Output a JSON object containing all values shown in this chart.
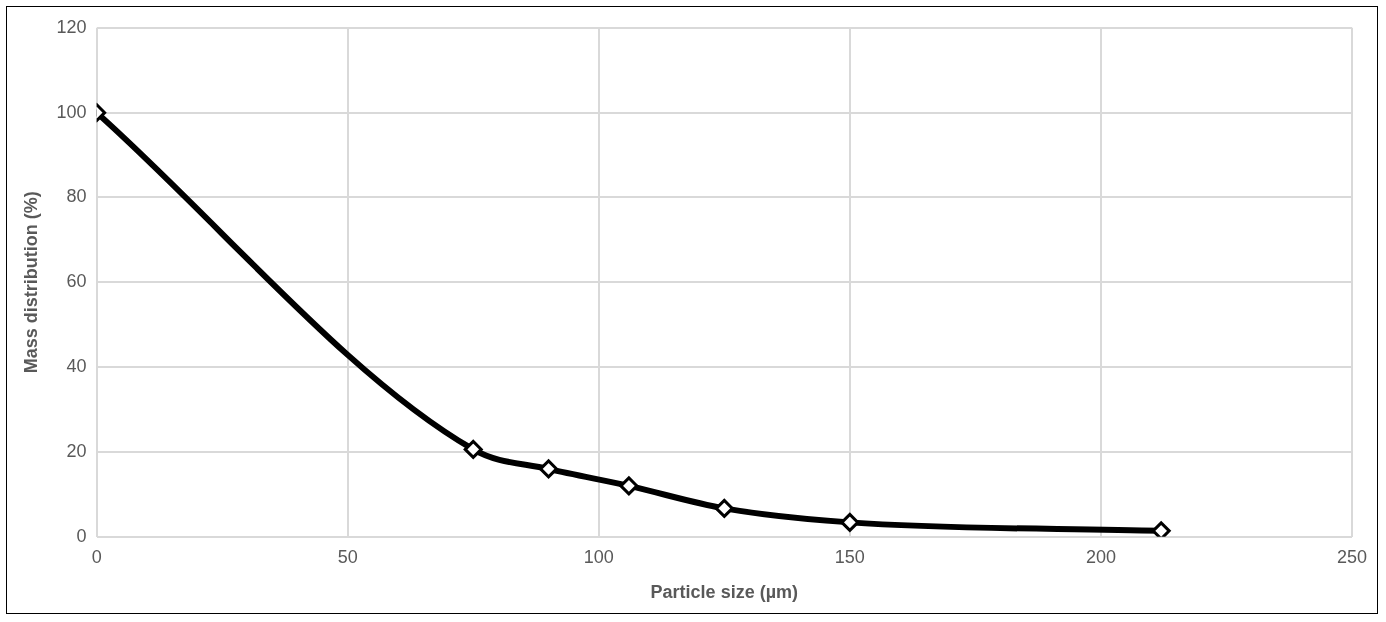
{
  "chart_data": {
    "type": "line",
    "xlabel": "Particle size (µm)",
    "ylabel": "Mass distribution (%)",
    "x": [
      0,
      75,
      90,
      106,
      125,
      150,
      212
    ],
    "series": [
      {
        "color": "#000000",
        "values": [
          100,
          20.6,
          16,
          12,
          6.7,
          3.4,
          1.4
        ]
      }
    ],
    "xlim": [
      0,
      250
    ],
    "xticks": [
      0,
      50,
      100,
      150,
      200,
      250
    ],
    "ylim": [
      0,
      120
    ],
    "yticks": [
      0,
      20,
      40,
      60,
      80,
      100,
      120
    ],
    "grid": true,
    "marker": "diamond",
    "line_style": "solid",
    "legend": false
  }
}
